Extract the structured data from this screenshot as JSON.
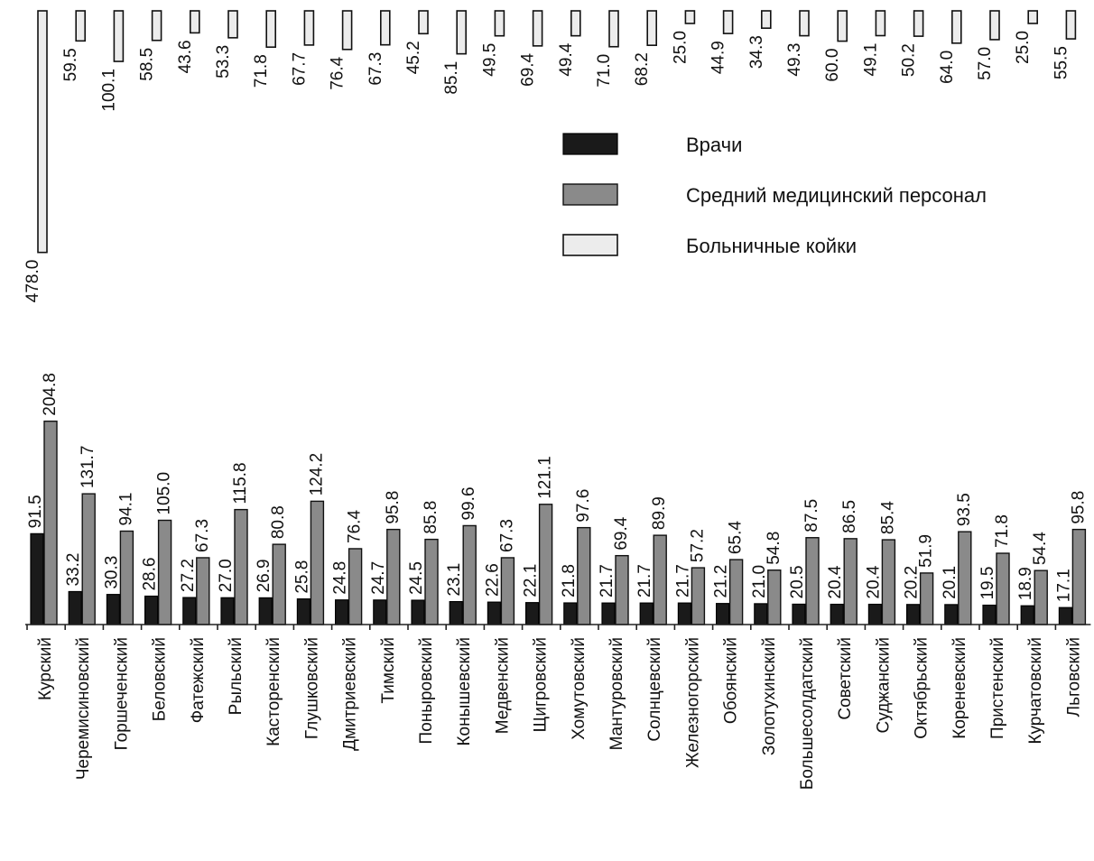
{
  "chart_data": {
    "type": "bar",
    "orientation": "vertical-bottom-rotated-labels",
    "categories": [
      "Курский",
      "Черемисиновский",
      "Горшеченский",
      "Беловский",
      "Фатежский",
      "Рыльский",
      "Касторенский",
      "Глушковский",
      "Дмитриевский",
      "Тимский",
      "Поныровский",
      "Конышевский",
      "Медвенский",
      "Щигровский",
      "Хомутовский",
      "Мантуровский",
      "Солнцевский",
      "Железногорский",
      "Обоянский",
      "Золотухинский",
      "Большесолдатский",
      "Советский",
      "Суджанский",
      "Октябрьский",
      "Кореневский",
      "Пристенский",
      "Курчатовский",
      "Льговский"
    ],
    "series": [
      {
        "name": "Врачи",
        "color": "#1a1a1a",
        "values": [
          91.5,
          33.2,
          30.3,
          28.6,
          27.2,
          27.0,
          26.9,
          25.8,
          24.8,
          24.7,
          24.5,
          23.1,
          22.6,
          22.1,
          21.8,
          21.7,
          21.7,
          21.7,
          21.2,
          21.0,
          20.5,
          20.4,
          20.4,
          20.2,
          20.1,
          19.5,
          18.9,
          17.1
        ]
      },
      {
        "name": "Средний медицинский персонал",
        "color": "#8a8a8a",
        "values": [
          204.8,
          131.7,
          94.1,
          105.0,
          67.3,
          115.8,
          80.8,
          124.2,
          76.4,
          95.8,
          85.8,
          99.6,
          67.3,
          121.1,
          97.6,
          69.4,
          89.9,
          57.2,
          65.4,
          54.8,
          87.5,
          86.5,
          85.4,
          51.9,
          93.5,
          71.8,
          54.4,
          95.8
        ]
      },
      {
        "name": "Больничные койки",
        "color": "#ececec",
        "values": [
          478.0,
          59.5,
          100.1,
          58.5,
          43.6,
          53.3,
          71.8,
          67.7,
          76.4,
          67.3,
          45.2,
          85.1,
          49.5,
          69.4,
          49.4,
          71.0,
          68.2,
          25.0,
          44.9,
          34.3,
          49.3,
          60.0,
          49.1,
          50.2,
          64.0,
          57.0,
          25.0,
          55.5
        ]
      }
    ],
    "value_labels": {
      "Врачи": [
        "91.5",
        "33.2",
        "30.3",
        "28.6",
        "27.2",
        "27.0",
        "26.9",
        "25.8",
        "24.8",
        "24.7",
        "24.5",
        "23.1",
        "22.6",
        "22.1",
        "21.8",
        "21.7",
        "21.7",
        "21.7",
        "21.2",
        "21.0",
        "20.5",
        "20.4",
        "20.4",
        "20.2",
        "20.1",
        "19.5",
        "18.9",
        "17.1"
      ],
      "Средний медицинский персонал": [
        "204.8",
        "131.7",
        "94.1",
        "105.0",
        "67.3",
        "115.8",
        "80.8",
        "124.2",
        "76.4",
        "95.8",
        "85.8",
        "99.6",
        "67.3",
        "121.1",
        "97.6",
        "69.4",
        "89.9",
        "57.2",
        "65.4",
        "54.8",
        "87.5",
        "86.5",
        "85.4",
        "51.9",
        "93.5",
        "71.8",
        "54.4",
        "95.8"
      ],
      "Больничные койки": [
        "478.0",
        "59.5",
        "100.1",
        "58.5",
        "43.6",
        "53.3",
        "71.8",
        "67.7",
        "76.4",
        "67.3",
        "45.2",
        "85.1",
        "49.5",
        "69.4",
        "49.4",
        "71.0",
        "68.2",
        "25.0",
        "44.9",
        "34.3",
        "49.3",
        "60.0",
        "49.1",
        "50.2",
        "64.0",
        "57.0",
        "25.0",
        "55.5"
      ]
    },
    "legend": {
      "placement": "upper-right",
      "entries": [
        "Врачи",
        "Средний медицинский персонал",
        "Больничные койки"
      ]
    },
    "title": "",
    "xlabel": "",
    "ylabel": "",
    "grid": false
  }
}
